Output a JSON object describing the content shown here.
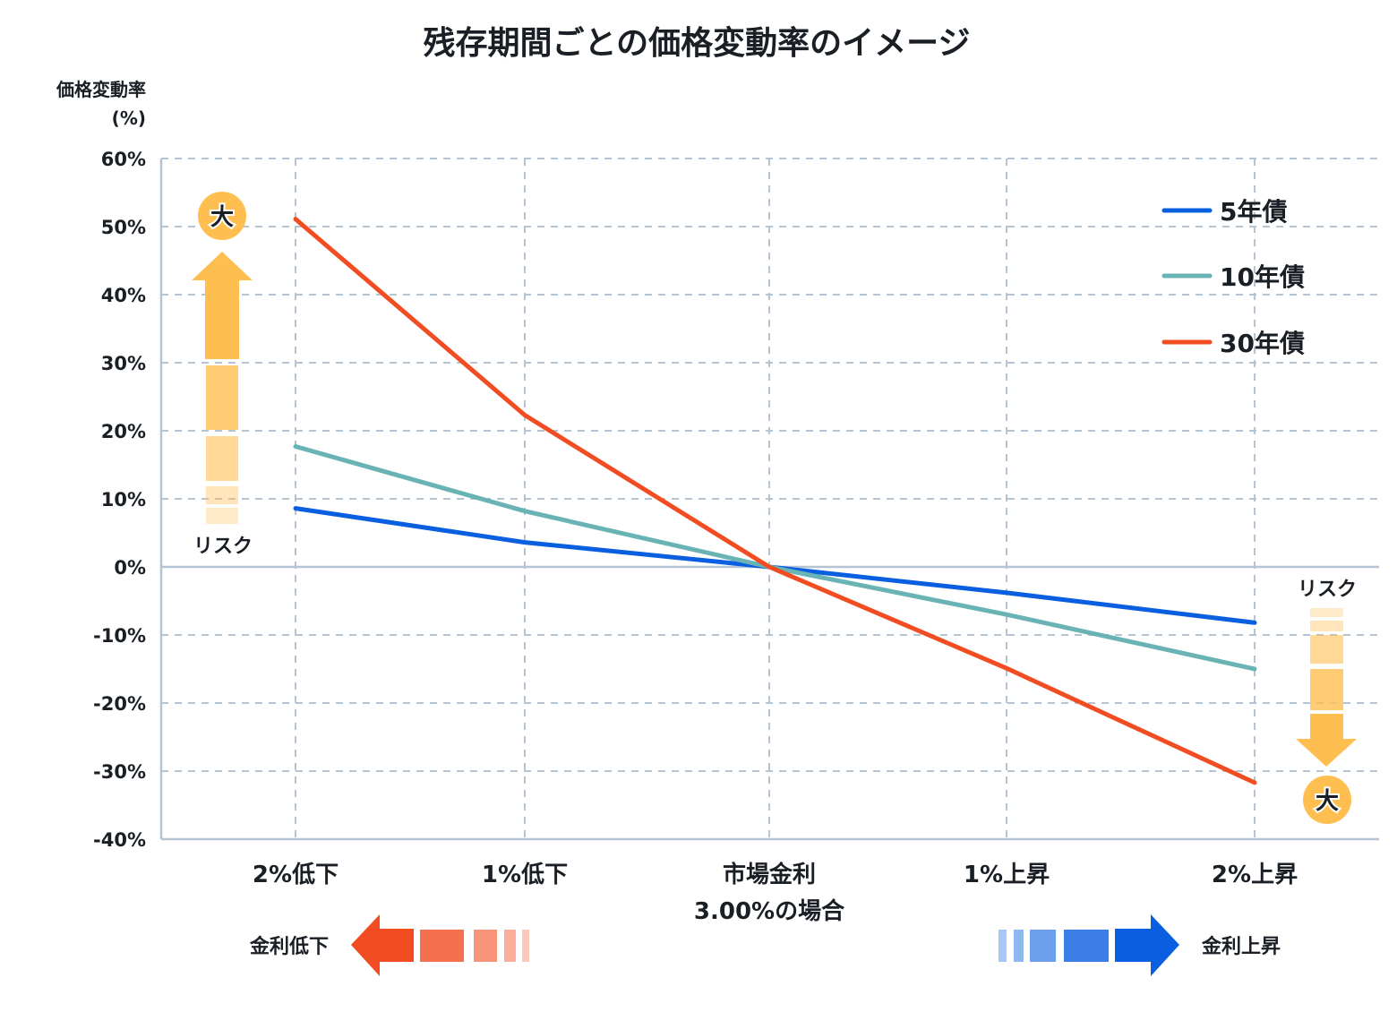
{
  "chart_data": {
    "type": "line",
    "title": "残存期間ごとの価格変動率のイメージ",
    "ylabel_line1": "価格変動率",
    "ylabel_line2": "(%)",
    "xlabel": "",
    "ylim": [
      -40,
      60
    ],
    "yticks": [
      60,
      50,
      40,
      30,
      20,
      10,
      0,
      -10,
      -20,
      -30,
      -40
    ],
    "ytick_labels": [
      "60%",
      "50%",
      "40%",
      "30%",
      "20%",
      "10%",
      "0%",
      "-10%",
      "-20%",
      "-30%",
      "-40%"
    ],
    "categories": [
      {
        "line1": "2%低下",
        "line2": ""
      },
      {
        "line1": "1%低下",
        "line2": ""
      },
      {
        "line1": "市場金利",
        "line2": "3.00%の場合"
      },
      {
        "line1": "1%上昇",
        "line2": ""
      },
      {
        "line1": "2%上昇",
        "line2": ""
      }
    ],
    "grid": true,
    "legend_position": "top-right",
    "series": [
      {
        "name": "5年債",
        "color": "#0a5fe0",
        "values": [
          8.6,
          3.6,
          0,
          -3.8,
          -8.2
        ]
      },
      {
        "name": "10年債",
        "color": "#69b3b5",
        "values": [
          17.7,
          8.2,
          0,
          -7.0,
          -15.0
        ]
      },
      {
        "name": "30年債",
        "color": "#f24d22",
        "values": [
          51.1,
          22.3,
          0,
          -14.9,
          -31.7
        ]
      }
    ],
    "annotations": {
      "risk_label": "リスク",
      "big_label": "大",
      "rate_down_label": "金利低下",
      "rate_up_label": "金利上昇",
      "risk_color": "#ffbe50",
      "down_color": "#f24d22",
      "up_color": "#0a5fe0"
    }
  }
}
